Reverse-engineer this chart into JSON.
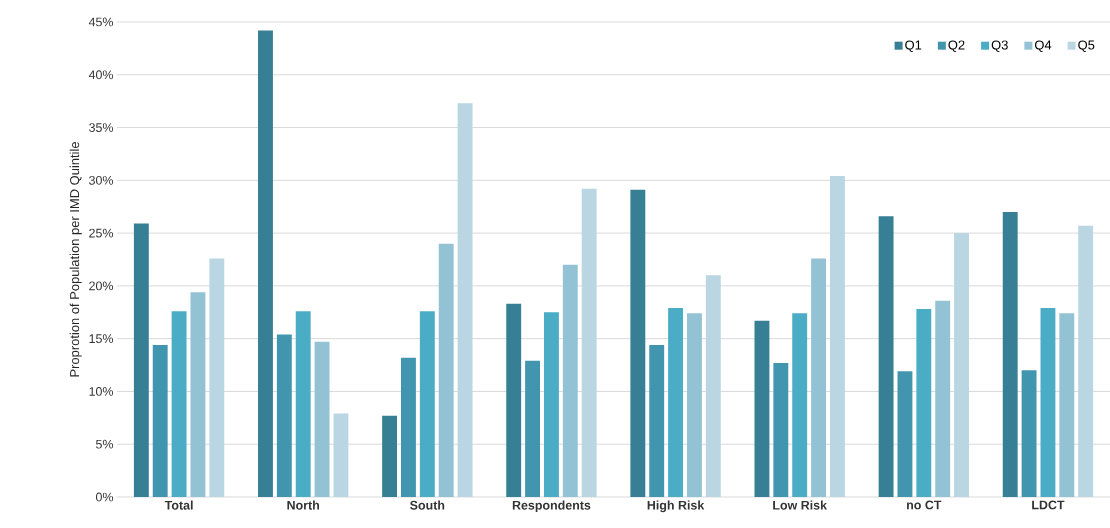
{
  "chart_data": {
    "type": "bar",
    "ylabel": "Proprotion of Population per IMD Quintile",
    "categories": [
      "Total",
      "North",
      "South",
      "Respondents",
      "High Risk",
      "Low Risk",
      "no CT",
      "LDCT"
    ],
    "series": [
      {
        "name": "Q1",
        "color": "#367f94",
        "values": [
          25.9,
          44.2,
          7.7,
          18.3,
          29.1,
          16.7,
          26.6,
          27.0
        ]
      },
      {
        "name": "Q2",
        "color": "#4295ae",
        "values": [
          14.4,
          15.4,
          13.2,
          12.9,
          14.4,
          12.7,
          11.9,
          12.0
        ]
      },
      {
        "name": "Q3",
        "color": "#4bacc6",
        "values": [
          17.6,
          17.6,
          17.6,
          17.5,
          17.9,
          17.4,
          17.8,
          17.9
        ]
      },
      {
        "name": "Q4",
        "color": "#93c2d4",
        "values": [
          19.4,
          14.7,
          24.0,
          22.0,
          17.4,
          22.6,
          18.6,
          17.4
        ]
      },
      {
        "name": "Q5",
        "color": "#b9d6e2",
        "values": [
          22.6,
          7.9,
          37.3,
          29.2,
          21.0,
          30.4,
          25.0,
          25.7
        ]
      }
    ],
    "ylim": [
      0,
      45
    ],
    "yticks": [
      {
        "value": 0,
        "label": "0%"
      },
      {
        "value": 5,
        "label": "5%"
      },
      {
        "value": 10,
        "label": "10%"
      },
      {
        "value": 15,
        "label": "15%"
      },
      {
        "value": 20,
        "label": "20%"
      },
      {
        "value": 25,
        "label": "25%"
      },
      {
        "value": 30,
        "label": "30%"
      },
      {
        "value": 35,
        "label": "35%"
      },
      {
        "value": 40,
        "label": "40%"
      },
      {
        "value": 45,
        "label": "45%"
      }
    ],
    "grid": "y",
    "legend": "top right"
  }
}
